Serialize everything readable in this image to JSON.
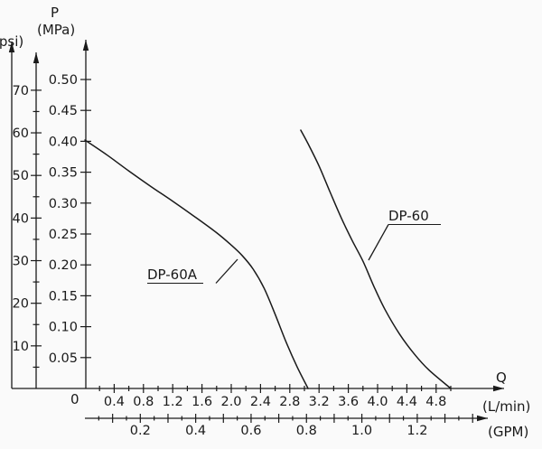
{
  "chart_data": {
    "type": "line",
    "y_axis": {
      "name": "P",
      "unit": "(MPa)",
      "zero_label": "0",
      "range": [
        0,
        0.52
      ],
      "tick_values": [
        0.05,
        0.1,
        0.15,
        0.2,
        0.25,
        0.3,
        0.35,
        0.4,
        0.45,
        0.5
      ],
      "tick_labels": [
        "0.05",
        "0.10",
        "0.15",
        "0.20",
        "0.25",
        "0.30",
        "0.35",
        "0.40",
        "0.45",
        "0.50"
      ]
    },
    "y_axis_secondary": {
      "unit": "(psi)",
      "mpa_per_psi": 0.0068948,
      "tick_values": [
        10,
        20,
        30,
        40,
        50,
        60,
        70
      ],
      "tick_labels": [
        "10",
        "20",
        "30",
        "40",
        "50",
        "60",
        "70"
      ]
    },
    "x_axis": {
      "name": "Q",
      "unit": "(L/min)",
      "range": [
        0,
        5.6
      ],
      "minor_step": 0.2,
      "tick_values": [
        0.4,
        0.8,
        1.2,
        1.6,
        2.0,
        2.4,
        2.8,
        3.2,
        3.6,
        4.0,
        4.4,
        4.8
      ],
      "tick_labels": [
        "0.4",
        "0.8",
        "1.2",
        "1.6",
        "2.0",
        "2.4",
        "2.8",
        "3.2",
        "3.6",
        "4.0",
        "4.4",
        "4.8"
      ]
    },
    "x_axis_secondary": {
      "unit": "(GPM)",
      "lmin_per_gpm": 3.785,
      "minor_step": 0.05,
      "tick_values": [
        0.2,
        0.4,
        0.6,
        0.8,
        1.0,
        1.2
      ],
      "tick_labels": [
        "0.2",
        "0.4",
        "0.6",
        "0.8",
        "1.0",
        "1.2"
      ]
    },
    "series": [
      {
        "name": "DP-60A",
        "points": [
          [
            0,
            0.402
          ],
          [
            0.3,
            0.378
          ],
          [
            0.6,
            0.352
          ],
          [
            0.9,
            0.327
          ],
          [
            1.2,
            0.303
          ],
          [
            1.5,
            0.278
          ],
          [
            1.8,
            0.252
          ],
          [
            2.0,
            0.232
          ],
          [
            2.15,
            0.215
          ],
          [
            2.3,
            0.193
          ],
          [
            2.45,
            0.162
          ],
          [
            2.6,
            0.12
          ],
          [
            2.75,
            0.075
          ],
          [
            2.9,
            0.035
          ],
          [
            3.05,
            0
          ]
        ]
      },
      {
        "name": "DP-60",
        "points": [
          [
            2.95,
            0.418
          ],
          [
            3.05,
            0.396
          ],
          [
            3.2,
            0.36
          ],
          [
            3.35,
            0.318
          ],
          [
            3.5,
            0.277
          ],
          [
            3.65,
            0.24
          ],
          [
            3.8,
            0.206
          ],
          [
            3.95,
            0.165
          ],
          [
            4.1,
            0.128
          ],
          [
            4.3,
            0.088
          ],
          [
            4.5,
            0.056
          ],
          [
            4.7,
            0.03
          ],
          [
            5.0,
            0
          ]
        ]
      }
    ]
  }
}
